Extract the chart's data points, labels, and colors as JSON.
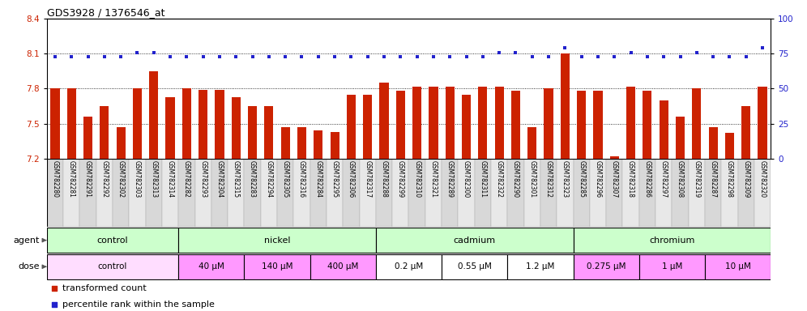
{
  "title": "GDS3928 / 1376546_at",
  "samples": [
    "GSM782280",
    "GSM782281",
    "GSM782291",
    "GSM782292",
    "GSM782302",
    "GSM782303",
    "GSM782313",
    "GSM782314",
    "GSM782282",
    "GSM782293",
    "GSM782304",
    "GSM782315",
    "GSM782283",
    "GSM782294",
    "GSM782305",
    "GSM782316",
    "GSM782284",
    "GSM782295",
    "GSM782306",
    "GSM782317",
    "GSM782288",
    "GSM782299",
    "GSM782310",
    "GSM782321",
    "GSM782289",
    "GSM782300",
    "GSM782311",
    "GSM782322",
    "GSM782290",
    "GSM782301",
    "GSM782312",
    "GSM782323",
    "GSM782285",
    "GSM782296",
    "GSM782307",
    "GSM782318",
    "GSM782286",
    "GSM782297",
    "GSM782308",
    "GSM782319",
    "GSM782287",
    "GSM782298",
    "GSM782309",
    "GSM782320"
  ],
  "bar_values": [
    7.8,
    7.8,
    7.56,
    7.65,
    7.47,
    7.8,
    7.95,
    7.73,
    7.8,
    7.79,
    7.79,
    7.73,
    7.65,
    7.65,
    7.47,
    7.47,
    7.44,
    7.43,
    7.75,
    7.75,
    7.85,
    7.78,
    7.82,
    7.82,
    7.82,
    7.75,
    7.82,
    7.82,
    7.78,
    7.47,
    7.8,
    8.1,
    7.78,
    7.78,
    7.22,
    7.82,
    7.78,
    7.7,
    7.56,
    7.8,
    7.47,
    7.42,
    7.65,
    7.82
  ],
  "percentile_values": [
    73,
    73,
    73,
    73,
    73,
    76,
    76,
    73,
    73,
    73,
    73,
    73,
    73,
    73,
    73,
    73,
    73,
    73,
    73,
    73,
    73,
    73,
    73,
    73,
    73,
    73,
    73,
    76,
    76,
    73,
    73,
    79,
    73,
    73,
    73,
    76,
    73,
    73,
    73,
    76,
    73,
    73,
    73,
    79
  ],
  "ylim_left": [
    7.2,
    8.4
  ],
  "ylim_right": [
    0,
    100
  ],
  "yticks_left": [
    7.2,
    7.5,
    7.8,
    8.1,
    8.4
  ],
  "yticks_right": [
    0,
    25,
    50,
    75,
    100
  ],
  "bar_color": "#cc2200",
  "dot_color": "#2222cc",
  "agent_groups": [
    {
      "label": "control",
      "start": 0,
      "end": 7,
      "color": "#ccffcc"
    },
    {
      "label": "nickel",
      "start": 8,
      "end": 19,
      "color": "#ccffcc"
    },
    {
      "label": "cadmium",
      "start": 20,
      "end": 31,
      "color": "#ccffcc"
    },
    {
      "label": "chromium",
      "start": 32,
      "end": 43,
      "color": "#ccffcc"
    }
  ],
  "dose_groups": [
    {
      "label": "control",
      "start": 0,
      "end": 7,
      "color": "#ffddff"
    },
    {
      "label": "40 μM",
      "start": 8,
      "end": 11,
      "color": "#ff99ff"
    },
    {
      "label": "140 μM",
      "start": 12,
      "end": 15,
      "color": "#ff99ff"
    },
    {
      "label": "400 μM",
      "start": 16,
      "end": 19,
      "color": "#ff99ff"
    },
    {
      "label": "0.2 μM",
      "start": 20,
      "end": 23,
      "color": "#ffffff"
    },
    {
      "label": "0.55 μM",
      "start": 24,
      "end": 27,
      "color": "#ffffff"
    },
    {
      "label": "1.2 μM",
      "start": 28,
      "end": 31,
      "color": "#ffffff"
    },
    {
      "label": "0.275 μM",
      "start": 32,
      "end": 35,
      "color": "#ff99ff"
    },
    {
      "label": "1 μM",
      "start": 36,
      "end": 39,
      "color": "#ff99ff"
    },
    {
      "label": "10 μM",
      "start": 40,
      "end": 43,
      "color": "#ff99ff"
    }
  ]
}
